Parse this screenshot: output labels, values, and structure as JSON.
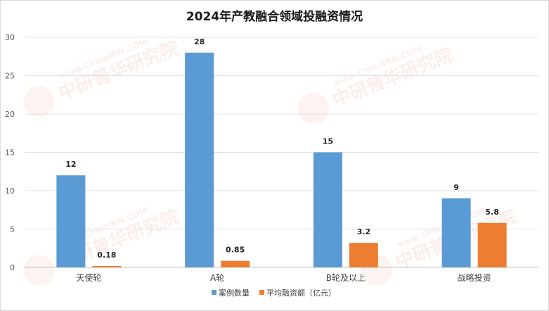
{
  "chart_data": {
    "type": "bar",
    "title": "2024年产教融合领域投融资情况",
    "categories": [
      "天使轮",
      "A轮",
      "B轮及以上",
      "战略投资"
    ],
    "series": [
      {
        "name": "案例数量",
        "values": [
          12,
          28,
          15,
          9
        ],
        "labels": [
          "12",
          "28",
          "15",
          "9"
        ],
        "color": "#5b9bd5"
      },
      {
        "name": "平均融资额（亿元）",
        "values": [
          0.18,
          0.85,
          3.2,
          5.8
        ],
        "labels": [
          "0.18",
          "0.85",
          "3.2",
          "5.8"
        ],
        "color": "#ed7d31"
      }
    ],
    "ylim": [
      0,
      30
    ],
    "yticks": [
      0,
      5,
      10,
      15,
      20,
      25,
      30
    ],
    "grid": true,
    "legend_position": "bottom",
    "xlabel": "",
    "ylabel": ""
  },
  "watermark": {
    "brand": "中研普华研究院",
    "site": "www.ChinaIRN.COM",
    "logo": "CIRN",
    "color": "#e06040"
  }
}
